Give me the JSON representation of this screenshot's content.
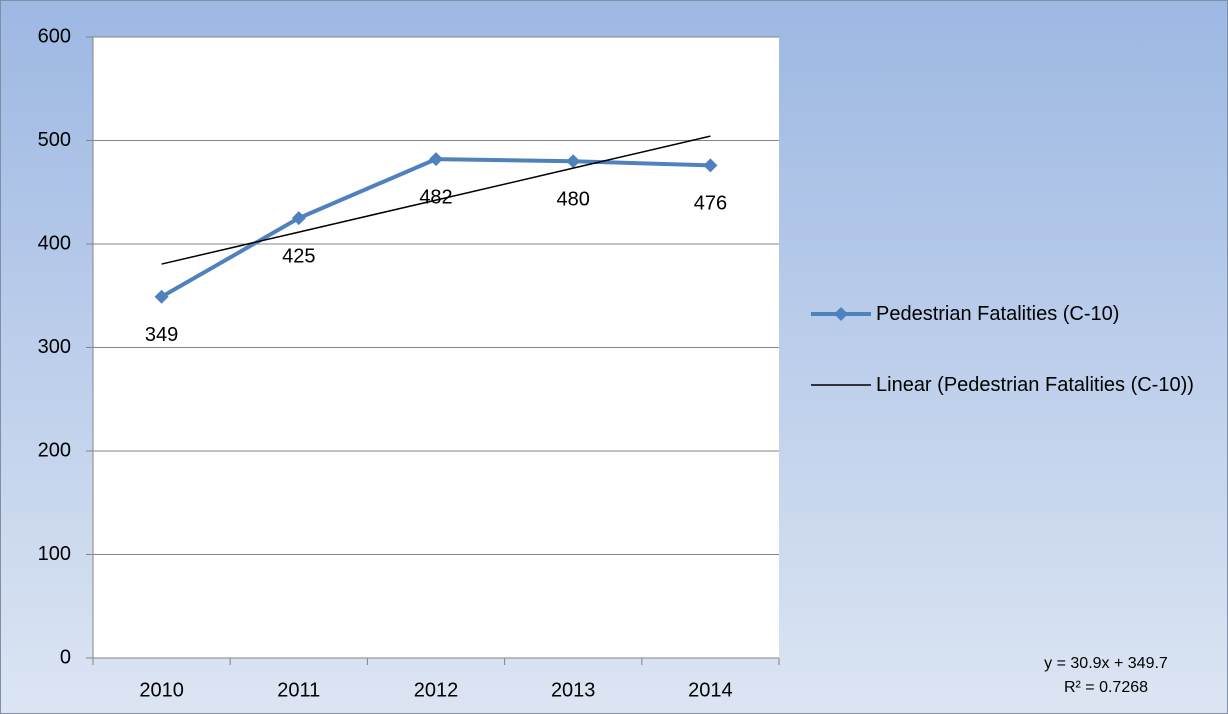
{
  "chart_data": {
    "type": "line",
    "categories": [
      "2010",
      "2011",
      "2012",
      "2013",
      "2014"
    ],
    "series": [
      {
        "name": "Pedestrian Fatalities (C-10)",
        "color": "#4f81bd",
        "values": [
          349,
          425,
          482,
          480,
          476
        ],
        "markers": "diamond",
        "data_labels": true
      },
      {
        "name": "Linear (Pedestrian Fatalities (C-10))",
        "color": "#000000",
        "values": [
          380.6,
          411.5,
          442.4,
          473.3,
          504.2
        ]
      }
    ],
    "ylim": [
      0,
      600
    ],
    "yticks": [
      0,
      100,
      200,
      300,
      400,
      500,
      600
    ],
    "grid": true,
    "legend": "right",
    "annotations": [
      "y = 30.9x + 349.7",
      "R² = 0.7268"
    ]
  }
}
